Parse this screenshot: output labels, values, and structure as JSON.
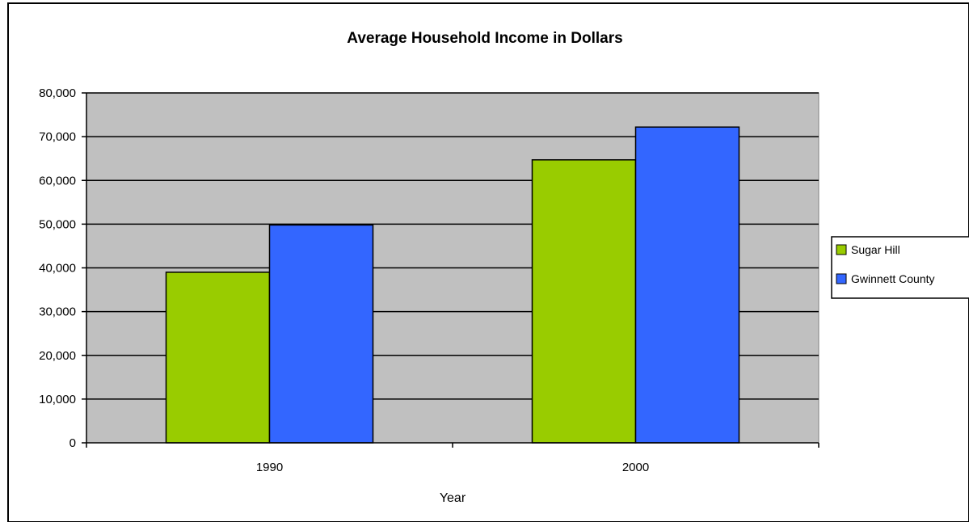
{
  "chart_data": {
    "type": "bar",
    "title": "Average Household Income in Dollars",
    "xlabel": "Year",
    "ylabel": "",
    "categories": [
      "1990",
      "2000"
    ],
    "series": [
      {
        "name": "Sugar Hill",
        "values": [
          39000,
          64700
        ],
        "color": "#99CC00"
      },
      {
        "name": "Gwinnett County",
        "values": [
          49800,
          72200
        ],
        "color": "#3366FF"
      }
    ],
    "ylim": [
      0,
      80000
    ],
    "y_ticks": [
      0,
      10000,
      20000,
      30000,
      40000,
      50000,
      60000,
      70000,
      80000
    ],
    "y_tick_labels": [
      "0",
      "10,000",
      "20,000",
      "30,000",
      "40,000",
      "50,000",
      "60,000",
      "70,000",
      "80,000"
    ],
    "grid": true,
    "plot_background": "#C0C0C0",
    "legend_position": "right"
  }
}
